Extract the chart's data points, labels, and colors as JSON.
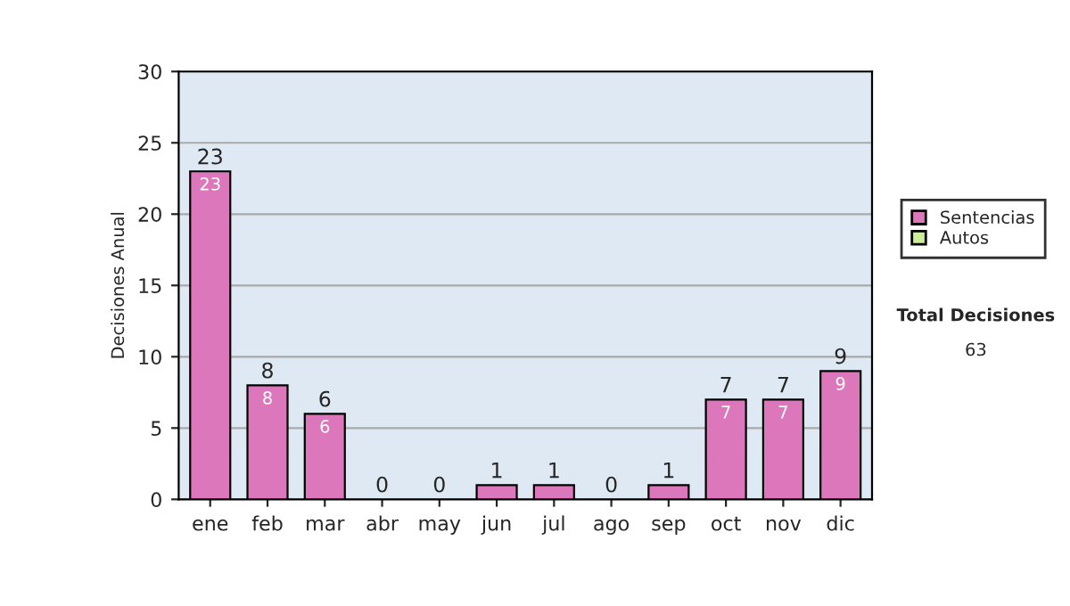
{
  "chart_data": {
    "type": "bar",
    "stacked": true,
    "ylabel": "Decisiones Anual",
    "categories": [
      "ene",
      "feb",
      "mar",
      "abr",
      "may",
      "jun",
      "jul",
      "ago",
      "sep",
      "oct",
      "nov",
      "dic"
    ],
    "series": [
      {
        "name": "Sentencias",
        "color": "#dd77bb",
        "values": [
          23,
          8,
          6,
          0,
          0,
          1,
          1,
          0,
          1,
          7,
          7,
          9
        ],
        "value_labels": [
          "23",
          "8",
          "6",
          null,
          null,
          null,
          null,
          null,
          null,
          "7",
          "7",
          "9"
        ]
      },
      {
        "name": "Autos",
        "color": "#ccee99",
        "values": [
          0,
          0,
          0,
          0,
          0,
          0,
          0,
          0,
          0,
          0,
          0,
          0
        ]
      }
    ],
    "totals": [
      "23",
      "8",
      "6",
      "0",
      "0",
      "1",
      "1",
      "0",
      "1",
      "7",
      "7",
      "9"
    ],
    "ylim": [
      0,
      30
    ],
    "yticks": [
      0,
      5,
      10,
      15,
      20,
      25,
      30
    ],
    "grid": "y",
    "legend": "right",
    "annotations": [
      "Total Decisiones",
      "63"
    ]
  }
}
